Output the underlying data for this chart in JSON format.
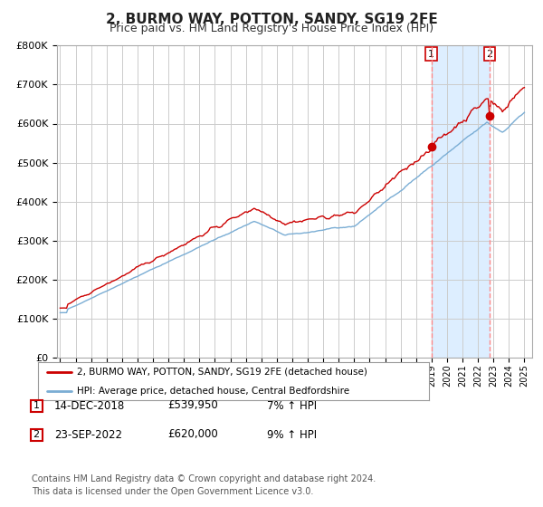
{
  "title": "2, BURMO WAY, POTTON, SANDY, SG19 2FE",
  "subtitle": "Price paid vs. HM Land Registry's House Price Index (HPI)",
  "title_fontsize": 11,
  "subtitle_fontsize": 9,
  "ylim": [
    0,
    800000
  ],
  "yticks": [
    0,
    100000,
    200000,
    300000,
    400000,
    500000,
    600000,
    700000,
    800000
  ],
  "ytick_labels": [
    "£0",
    "£100K",
    "£200K",
    "£300K",
    "£400K",
    "£500K",
    "£600K",
    "£700K",
    "£800K"
  ],
  "hpi_color": "#7aadd4",
  "price_color": "#cc0000",
  "bg_color": "#ffffff",
  "grid_color": "#cccccc",
  "shade_color": "#ddeeff",
  "marker1_price": 539950,
  "marker1_label": "1",
  "marker2_price": 620000,
  "marker2_label": "2",
  "legend_entry1": "2, BURMO WAY, POTTON, SANDY, SG19 2FE (detached house)",
  "legend_entry2": "HPI: Average price, detached house, Central Bedfordshire",
  "table_row1_date": "14-DEC-2018",
  "table_row1_price": "£539,950",
  "table_row1_hpi": "7% ↑ HPI",
  "table_row2_date": "23-SEP-2022",
  "table_row2_price": "£620,000",
  "table_row2_hpi": "9% ↑ HPI",
  "footer": "Contains HM Land Registry data © Crown copyright and database right 2024.\nThis data is licensed under the Open Government Licence v3.0.",
  "xstart_year": 1995,
  "xend_year": 2025
}
